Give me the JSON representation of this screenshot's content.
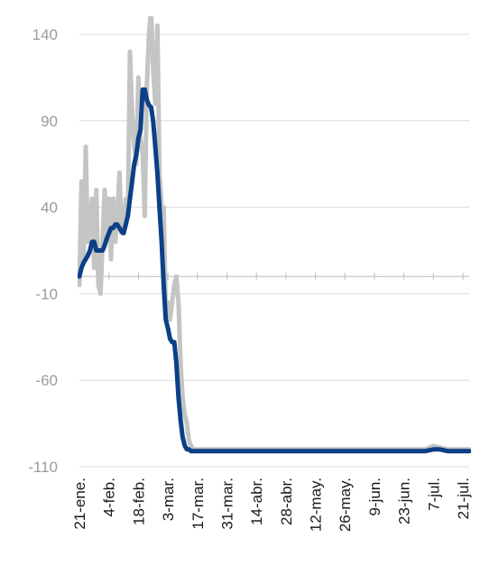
{
  "chart_data": {
    "type": "line",
    "title": "",
    "xlabel": "",
    "ylabel": "",
    "ylim": [
      -110,
      140
    ],
    "y_ticks": [
      "140",
      "90",
      "40",
      "-10",
      "-60",
      "-110"
    ],
    "x_tick_labels": [
      "21-ene.",
      "4-feb.",
      "18-feb.",
      "3-mar.",
      "17-mar.",
      "31-mar.",
      "14-abr.",
      "28-abr.",
      "12-may.",
      "26-may.",
      "9-jun.",
      "23-jun.",
      "7-jul.",
      "21-jul."
    ],
    "grid": true,
    "colors": {
      "daily": "#c4c4c4",
      "average": "#0b3f86",
      "grid": "#dcdcdc",
      "zero_line": "#bdbdbd"
    },
    "series": [
      {
        "x": [
          "21-ene",
          "22-ene",
          "23-ene",
          "24-ene",
          "25-ene",
          "26-ene",
          "27-ene",
          "28-ene",
          "29-ene",
          "30-ene",
          "31-ene",
          "1-feb",
          "2-feb",
          "3-feb",
          "4-feb",
          "5-feb",
          "6-feb",
          "7-feb",
          "8-feb",
          "9-feb",
          "10-feb",
          "11-feb",
          "12-feb",
          "13-feb",
          "14-feb",
          "15-feb",
          "16-feb",
          "17-feb",
          "18-feb",
          "19-feb",
          "20-feb",
          "21-feb",
          "22-feb",
          "23-feb",
          "24-feb",
          "25-feb",
          "26-feb",
          "27-feb",
          "28-feb",
          "29-feb",
          "1-mar",
          "2-mar",
          "3-mar",
          "4-mar",
          "5-mar",
          "6-mar",
          "7-mar",
          "8-mar",
          "9-mar",
          "10-mar",
          "11-mar",
          "12-mar",
          "13-mar",
          "14-mar",
          "15-mar",
          "16-mar",
          "17-mar",
          "18-mar",
          "19-mar",
          "20-mar",
          "21-mar",
          "22-mar",
          "23-mar",
          "24-mar",
          "25-mar",
          "26-mar",
          "27-mar",
          "28-mar",
          "29-mar",
          "30-mar",
          "31-mar",
          "7-abr",
          "14-abr",
          "21-abr",
          "28-abr",
          "5-may",
          "12-may",
          "19-may",
          "26-may",
          "2-jun",
          "9-jun",
          "16-jun",
          "23-jun",
          "30-jun",
          "3-jul",
          "7-jul",
          "10-jul",
          "14-jul",
          "17-jul",
          "21-jul",
          "24-jul"
        ],
        "values": [
          -5,
          55,
          10,
          75,
          20,
          30,
          45,
          5,
          50,
          -5,
          -10,
          20,
          50,
          25,
          45,
          10,
          45,
          20,
          35,
          60,
          25,
          30,
          45,
          35,
          130,
          95,
          75,
          65,
          115,
          80,
          70,
          35,
          110,
          140,
          155,
          120,
          100,
          145,
          60,
          40,
          40,
          -20,
          -15,
          -25,
          -15,
          -5,
          0,
          -15,
          -50,
          -70,
          -80,
          -85,
          -95,
          -98,
          -100,
          -100,
          -100,
          -100,
          -100,
          -100,
          -100,
          -100,
          -100,
          -100,
          -100,
          -100,
          -100,
          -100,
          -100,
          -100,
          -100,
          -100,
          -100,
          -100,
          -100,
          -100,
          -100,
          -100,
          -100,
          -100,
          -100,
          -100,
          -100,
          -100,
          -100,
          -98,
          -99,
          -100,
          -100,
          -100,
          -100
        ]
      },
      {
        "x": [
          "21-ene",
          "22-ene",
          "23-ene",
          "24-ene",
          "25-ene",
          "26-ene",
          "27-ene",
          "28-ene",
          "29-ene",
          "30-ene",
          "31-ene",
          "1-feb",
          "2-feb",
          "3-feb",
          "4-feb",
          "5-feb",
          "6-feb",
          "7-feb",
          "8-feb",
          "9-feb",
          "10-feb",
          "11-feb",
          "12-feb",
          "13-feb",
          "14-feb",
          "15-feb",
          "16-feb",
          "17-feb",
          "18-feb",
          "19-feb",
          "20-feb",
          "21-feb",
          "22-feb",
          "23-feb",
          "24-feb",
          "25-feb",
          "26-feb",
          "27-feb",
          "28-feb",
          "29-feb",
          "1-mar",
          "2-mar",
          "3-mar",
          "4-mar",
          "5-mar",
          "6-mar",
          "7-mar",
          "8-mar",
          "9-mar",
          "10-mar",
          "11-mar",
          "12-mar",
          "13-mar",
          "14-mar",
          "15-mar",
          "16-mar",
          "17-mar",
          "18-mar",
          "19-mar",
          "20-mar",
          "21-mar",
          "24-mar",
          "31-mar",
          "7-abr",
          "14-abr",
          "21-abr",
          "28-abr",
          "5-may",
          "12-may",
          "19-may",
          "26-may",
          "2-jun",
          "9-jun",
          "16-jun",
          "23-jun",
          "30-jun",
          "3-jul",
          "7-jul",
          "10-jul",
          "14-jul",
          "17-jul",
          "21-jul",
          "24-jul"
        ],
        "values": [
          0,
          5,
          8,
          10,
          12,
          15,
          20,
          20,
          15,
          15,
          15,
          15,
          18,
          22,
          25,
          28,
          28,
          30,
          30,
          28,
          26,
          25,
          30,
          35,
          45,
          55,
          65,
          70,
          80,
          85,
          108,
          108,
          102,
          99,
          98,
          90,
          75,
          60,
          40,
          20,
          -5,
          -25,
          -30,
          -36,
          -38,
          -38,
          -50,
          -70,
          -83,
          -93,
          -98,
          -100,
          -100,
          -101,
          -101,
          -101,
          -101,
          -101,
          -101,
          -101,
          -101,
          -101,
          -101,
          -101,
          -101,
          -101,
          -101,
          -101,
          -101,
          -101,
          -101,
          -101,
          -101,
          -101,
          -101,
          -101,
          -101,
          -100,
          -100,
          -101,
          -101,
          -101,
          -101
        ]
      }
    ]
  }
}
